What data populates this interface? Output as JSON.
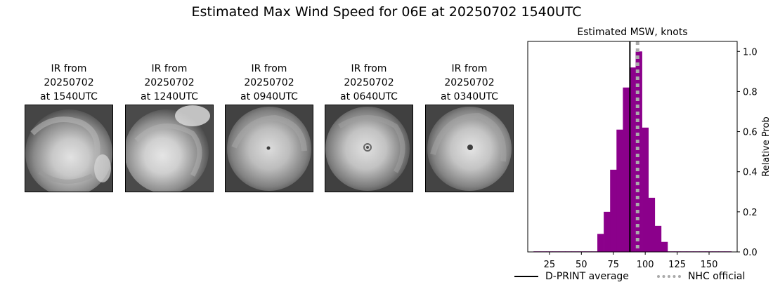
{
  "figure": {
    "title": "Estimated Max Wind Speed for 06E at 20250702 1540UTC"
  },
  "ir_panels": [
    {
      "line1": "IR from",
      "line2": "20250702",
      "line3": "at 1540UTC"
    },
    {
      "line1": "IR from",
      "line2": "20250702",
      "line3": "at 1240UTC"
    },
    {
      "line1": "IR from",
      "line2": "20250702",
      "line3": "at 0940UTC"
    },
    {
      "line1": "IR from",
      "line2": "20250702",
      "line3": "at 0640UTC"
    },
    {
      "line1": "IR from",
      "line2": "20250702",
      "line3": "at 0340UTC"
    }
  ],
  "chart_data": {
    "type": "bar",
    "title": "Estimated MSW, knots",
    "xlabel": "",
    "ylabel": "Relative Prob",
    "xlim": [
      8,
      172
    ],
    "ylim": [
      0,
      1.05
    ],
    "xticks": [
      25,
      50,
      75,
      100,
      125,
      150
    ],
    "yticks": [
      0.0,
      0.2,
      0.4,
      0.6,
      0.8,
      1.0
    ],
    "ytick_labels": [
      "0.0",
      "0.2",
      "0.4",
      "0.6",
      "0.8",
      "1.0"
    ],
    "bin_width": 5,
    "bar_color": "#8b008b",
    "bins": [
      {
        "x": 15,
        "value": 0.0
      },
      {
        "x": 20,
        "value": 0.0
      },
      {
        "x": 25,
        "value": 0.0
      },
      {
        "x": 30,
        "value": 0.0
      },
      {
        "x": 35,
        "value": 0.0
      },
      {
        "x": 40,
        "value": 0.0
      },
      {
        "x": 45,
        "value": 0.0
      },
      {
        "x": 50,
        "value": 0.0
      },
      {
        "x": 55,
        "value": 0.0
      },
      {
        "x": 60,
        "value": 0.0
      },
      {
        "x": 65,
        "value": 0.09
      },
      {
        "x": 70,
        "value": 0.2
      },
      {
        "x": 75,
        "value": 0.41
      },
      {
        "x": 80,
        "value": 0.61
      },
      {
        "x": 85,
        "value": 0.82
      },
      {
        "x": 90,
        "value": 0.92
      },
      {
        "x": 95,
        "value": 1.0
      },
      {
        "x": 100,
        "value": 0.62
      },
      {
        "x": 105,
        "value": 0.27
      },
      {
        "x": 110,
        "value": 0.13
      },
      {
        "x": 115,
        "value": 0.05
      },
      {
        "x": 120,
        "value": 0.0
      },
      {
        "x": 125,
        "value": 0.0
      },
      {
        "x": 130,
        "value": 0.0
      },
      {
        "x": 135,
        "value": 0.0
      },
      {
        "x": 140,
        "value": 0.0
      },
      {
        "x": 145,
        "value": 0.0
      },
      {
        "x": 150,
        "value": 0.0
      },
      {
        "x": 155,
        "value": 0.0
      },
      {
        "x": 160,
        "value": 0.0
      },
      {
        "x": 165,
        "value": 0.0
      }
    ],
    "dprint_average": 88,
    "nhc_official": 94,
    "legend": {
      "placement": "bottom",
      "entries": [
        {
          "label": "D-PRINT average",
          "color": "#000000",
          "style": "solid"
        },
        {
          "label": "NHC official",
          "color": "#aaaaaa",
          "style": "dotted"
        }
      ]
    }
  }
}
